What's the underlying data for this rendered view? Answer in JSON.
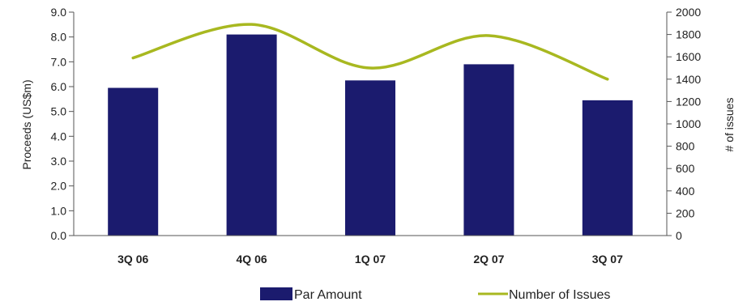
{
  "chart_data": {
    "type": "bar",
    "categories": [
      "3Q 06",
      "4Q 06",
      "1Q 07",
      "2Q 07",
      "3Q 07"
    ],
    "series": [
      {
        "name": "Par Amount",
        "type": "bar",
        "axis": "left",
        "values": [
          5.95,
          8.1,
          6.25,
          6.9,
          5.45
        ],
        "color": "#1b1b6e"
      },
      {
        "name": "Number of Issues",
        "type": "line",
        "axis": "right",
        "values": [
          1590,
          1890,
          1500,
          1790,
          1400
        ],
        "color": "#a8b820"
      }
    ],
    "ylabel": "Proceeds (US$m)",
    "y2label": "# of issues",
    "ylim": [
      0,
      9
    ],
    "y2lim": [
      0,
      2000
    ],
    "yticks": [
      "0.0",
      "1.0",
      "2.0",
      "3.0",
      "4.0",
      "5.0",
      "6.0",
      "7.0",
      "8.0",
      "9.0"
    ],
    "y2ticks": [
      "0",
      "200",
      "400",
      "600",
      "800",
      "1000",
      "1200",
      "1400",
      "1600",
      "1800",
      "2000"
    ],
    "legend": "bottom",
    "grid": false
  }
}
